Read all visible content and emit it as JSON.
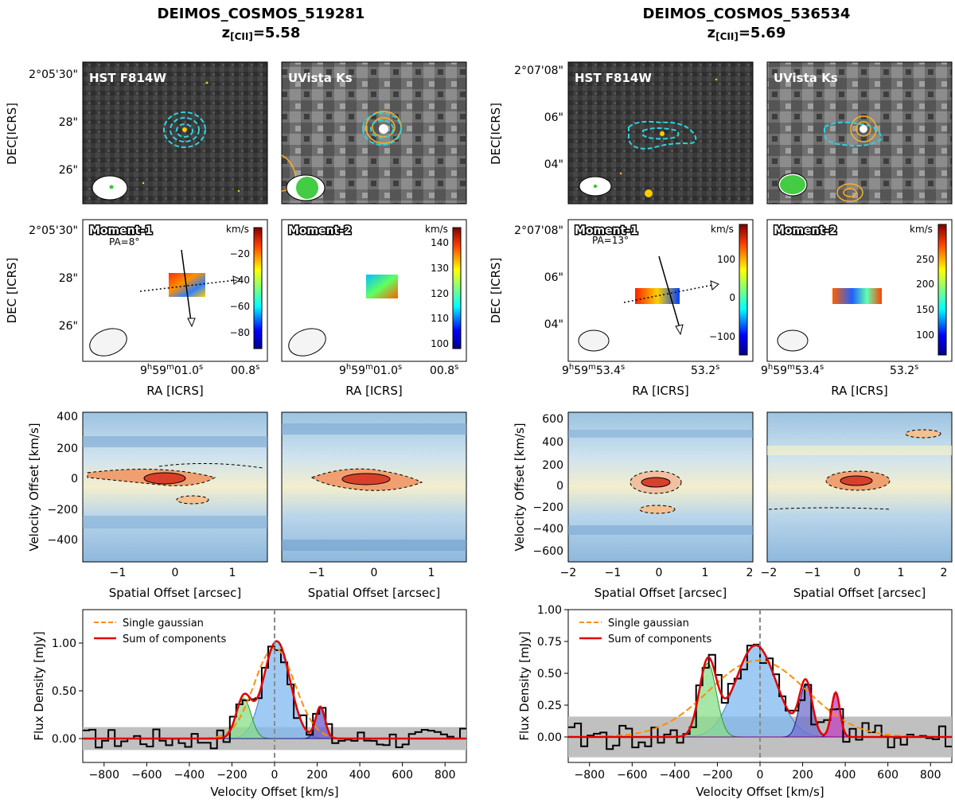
{
  "left": {
    "title": "DEIMOS_COSMOS_519281",
    "z_prefix": "z",
    "z_sub": "[CII]",
    "z_val": "=5.58",
    "hst_label": "HST F814W",
    "uvista_label": "UVista Ks",
    "dec_ticks": [
      "2°05'30\"",
      "28\"",
      "26\""
    ],
    "mom1_label": "Moment-1",
    "mom2_label": "Moment-2",
    "pa": "PA=8°",
    "cbar_unit": "km/s",
    "mom1_cbar_ticks": [
      "−20",
      "−40",
      "−60",
      "−80"
    ],
    "mom2_cbar_ticks": [
      "140",
      "130",
      "120",
      "110",
      "100"
    ],
    "ra_ticks": [
      "9h59m01.0s",
      "00.8s"
    ],
    "ra_h": "9",
    "ra_m": "59",
    "ra_s": "01.0",
    "ra_s2": "00.8",
    "pv_y_ticks": [
      "400",
      "200",
      "0",
      "−200",
      "−400"
    ],
    "pv_x_ticks": [
      "−1",
      "0",
      "1"
    ],
    "spec_y_ticks": [
      "1.00",
      "0.50",
      "0.00"
    ],
    "spec_x_ticks": [
      "−800",
      "−600",
      "−400",
      "−200",
      "0",
      "200",
      "400",
      "600",
      "800"
    ]
  },
  "right": {
    "title": "DEIMOS_COSMOS_536534",
    "z_prefix": "z",
    "z_sub": "[CII]",
    "z_val": "=5.69",
    "hst_label": "HST F814W",
    "uvista_label": "UVista Ks",
    "dec_ticks": [
      "2°07'08\"",
      "06\"",
      "04\""
    ],
    "mom1_label": "Moment-1",
    "mom2_label": "Moment-2",
    "pa": "PA=13°",
    "cbar_unit": "km/s",
    "mom1_cbar_ticks": [
      "100",
      "0",
      "−100"
    ],
    "mom2_cbar_ticks": [
      "250",
      "200",
      "150",
      "100"
    ],
    "ra_h": "9",
    "ra_m": "59",
    "ra_s": "53.4",
    "ra_s2": "53.2",
    "pv_y_ticks": [
      "600",
      "400",
      "200",
      "0",
      "−200",
      "−400",
      "−600"
    ],
    "pv_x_ticks": [
      "−2",
      "−1",
      "0",
      "1",
      "2"
    ],
    "spec_y_ticks": [
      "1.00",
      "0.75",
      "0.50",
      "0.25",
      "0.00"
    ],
    "spec_x_ticks": [
      "−800",
      "−600",
      "−400",
      "−200",
      "0",
      "200",
      "400",
      "600",
      "800"
    ]
  },
  "axes": {
    "dec_label": "DEC[ICRS]",
    "dec_label2": "DEC [ICRS]",
    "ra_label": "RA [ICRS]",
    "pv_ylabel": "Velocity Offset [km/s]",
    "pv_xlabel": "Spatial Offset [arcsec]",
    "spec_ylabel": "Flux Density [mJy]",
    "spec_xlabel": "Velocity Offset [km/s]"
  },
  "legend": {
    "single": "Single gaussian",
    "sum": "Sum of components"
  },
  "colors": {
    "single": "#ff8c00",
    "sum": "#e00000",
    "main": "#7fb8f0",
    "green": "#88dd88",
    "noise": "#c0c0c0"
  },
  "chart_data": [
    {
      "type": "line",
      "title": "DEIMOS_COSMOS_519281 [CII] spectrum",
      "xlabel": "Velocity Offset [km/s]",
      "ylabel": "Flux Density [mJy]",
      "xlim": [
        -900,
        900
      ],
      "ylim": [
        -0.25,
        1.35
      ],
      "series": [
        {
          "name": "Single gaussian",
          "center": 0,
          "amplitude": 0.95,
          "sigma": 95
        },
        {
          "name": "Sum of components",
          "components": [
            {
              "center": 10,
              "amplitude": 1.02,
              "sigma": 62
            },
            {
              "center": -145,
              "amplitude": 0.42,
              "sigma": 35
            },
            {
              "center": 215,
              "amplitude": 0.33,
              "sigma": 22
            }
          ]
        }
      ],
      "noise_band": [
        -0.12,
        0.12
      ]
    },
    {
      "type": "line",
      "title": "DEIMOS_COSMOS_536534 [CII] spectrum",
      "xlabel": "Velocity Offset [km/s]",
      "ylabel": "Flux Density [mJy]",
      "xlim": [
        -900,
        900
      ],
      "ylim": [
        -0.2,
        1.0
      ],
      "series": [
        {
          "name": "Single gaussian",
          "center": -10,
          "amplitude": 0.6,
          "sigma": 230
        },
        {
          "name": "Sum of components",
          "components": [
            {
              "center": -20,
              "amplitude": 0.72,
              "sigma": 95
            },
            {
              "center": -245,
              "amplitude": 0.58,
              "sigma": 40
            },
            {
              "center": 215,
              "amplitude": 0.42,
              "sigma": 30
            },
            {
              "center": 355,
              "amplitude": 0.35,
              "sigma": 20
            }
          ]
        }
      ],
      "noise_band": [
        -0.16,
        0.16
      ]
    }
  ]
}
